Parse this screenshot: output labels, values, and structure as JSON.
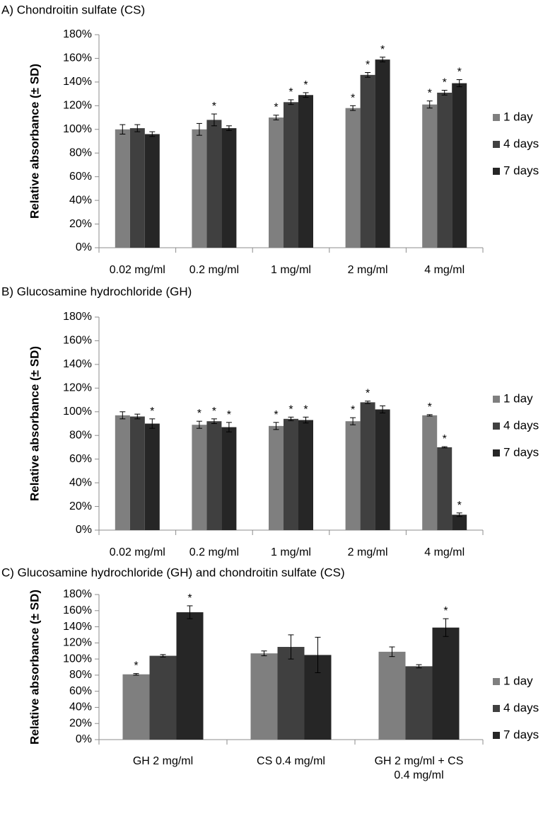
{
  "colors": {
    "1 day": "#7f7f7f",
    "4 days": "#404040",
    "7 days": "#262626",
    "axis": "#8c8c8c",
    "err": "#000000"
  },
  "chart_data": [
    {
      "type": "bar",
      "title": "A) Chondroitin sulfate (CS)",
      "ylabel": "Relative absorbance (± SD)",
      "xlabel": "",
      "ylim": [
        0,
        180
      ],
      "yticks": [
        "0%",
        "20%",
        "40%",
        "60%",
        "80%",
        "100%",
        "120%",
        "140%",
        "160%",
        "180%"
      ],
      "legend": "right",
      "categories": [
        [
          "0.02 mg/ml"
        ],
        [
          "0.2 mg/ml"
        ],
        [
          "1 mg/ml"
        ],
        [
          "2 mg/ml"
        ],
        [
          "4 mg/ml"
        ]
      ],
      "series": [
        {
          "name": "1 day",
          "values": [
            100,
            100,
            110,
            118,
            121
          ],
          "err": [
            4,
            5,
            2,
            2,
            3
          ],
          "sig": [
            false,
            false,
            true,
            true,
            true
          ]
        },
        {
          "name": "4 days",
          "values": [
            101,
            108,
            123,
            146,
            131
          ],
          "err": [
            3,
            5,
            2,
            2,
            2
          ],
          "sig": [
            false,
            true,
            true,
            true,
            true
          ]
        },
        {
          "name": "7 days",
          "values": [
            96,
            101,
            129,
            159,
            139
          ],
          "err": [
            2,
            2,
            2,
            2,
            3
          ],
          "sig": [
            false,
            false,
            true,
            true,
            true
          ]
        }
      ]
    },
    {
      "type": "bar",
      "title": "B) Glucosamine hydrochloride (GH)",
      "ylabel": "Relative absorbance (± SD)",
      "xlabel": "",
      "ylim": [
        0,
        180
      ],
      "yticks": [
        "0%",
        "20%",
        "40%",
        "60%",
        "80%",
        "100%",
        "120%",
        "140%",
        "160%",
        "180%"
      ],
      "legend": "right",
      "categories": [
        [
          "0.02 mg/ml"
        ],
        [
          "0.2 mg/ml"
        ],
        [
          "1 mg/ml"
        ],
        [
          "2 mg/ml"
        ],
        [
          "4 mg/ml"
        ]
      ],
      "series": [
        {
          "name": "1 day",
          "values": [
            97,
            89,
            88,
            92,
            97
          ],
          "err": [
            3,
            3,
            3,
            3,
            0.6
          ],
          "sig": [
            false,
            true,
            true,
            true,
            true
          ]
        },
        {
          "name": "4 days",
          "values": [
            96,
            92,
            94,
            108,
            70
          ],
          "err": [
            2,
            2,
            1.5,
            1,
            0.5
          ],
          "sig": [
            false,
            true,
            true,
            true,
            true
          ]
        },
        {
          "name": "7 days",
          "values": [
            90,
            87,
            93,
            102,
            13
          ],
          "err": [
            4,
            4,
            2.5,
            3,
            1.5
          ],
          "sig": [
            true,
            true,
            true,
            false,
            true
          ]
        }
      ]
    },
    {
      "type": "bar",
      "title": "C) Glucosamine hydrochloride (GH) and chondroitin sulfate (CS)",
      "ylabel": "Relative absorbance (± SD)",
      "xlabel": "",
      "ylim": [
        0,
        180
      ],
      "yticks": [
        "0%",
        "20%",
        "40%",
        "60%",
        "80%",
        "100%",
        "120%",
        "140%",
        "160%",
        "180%"
      ],
      "legend": "right",
      "categories": [
        [
          "GH 2 mg/ml"
        ],
        [
          "CS 0.4 mg/ml"
        ],
        [
          "GH 2 mg/ml + CS",
          "0.4 mg/ml"
        ]
      ],
      "series": [
        {
          "name": "1 day",
          "values": [
            81,
            107,
            109
          ],
          "err": [
            1,
            3,
            6
          ],
          "sig": [
            true,
            false,
            false
          ]
        },
        {
          "name": "4 days",
          "values": [
            104,
            115,
            91
          ],
          "err": [
            1.5,
            15,
            2
          ],
          "sig": [
            false,
            false,
            false
          ]
        },
        {
          "name": "7 days",
          "values": [
            158,
            105,
            139
          ],
          "err": [
            8,
            22,
            11
          ],
          "sig": [
            true,
            false,
            true
          ]
        }
      ]
    }
  ]
}
